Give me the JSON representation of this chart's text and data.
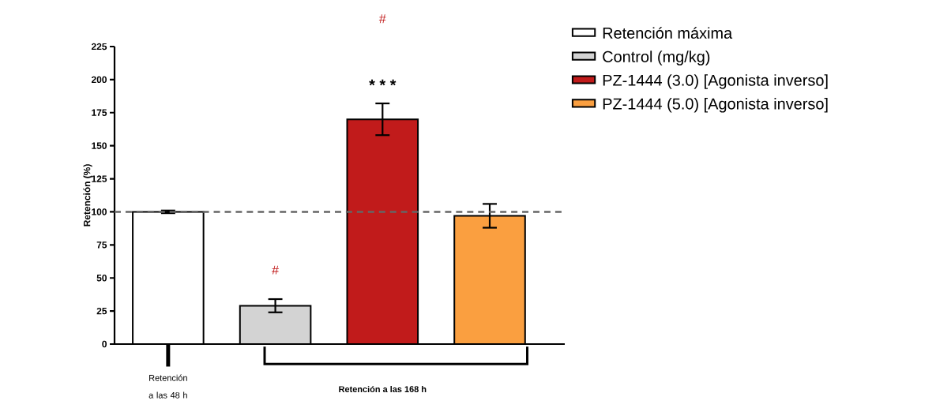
{
  "chart_data": {
    "type": "bar",
    "ylabel": "Retención (%)",
    "categories": [
      null,
      null,
      null,
      null
    ],
    "series": [
      {
        "name": "Retención máxima",
        "color": "#ffffff",
        "values": [
          100,
          null,
          null,
          null
        ],
        "errors": [
          1,
          null,
          null,
          null
        ]
      },
      {
        "name": "Control (mg/kg)",
        "color": "#d3d3d3",
        "values": [
          null,
          29,
          null,
          null
        ],
        "errors": [
          null,
          5,
          null,
          null
        ]
      },
      {
        "name": "PZ-1444 (3.0) [Agonista inverso]",
        "color": "#c11b1b",
        "values": [
          null,
          null,
          170,
          null
        ],
        "errors": [
          null,
          null,
          12,
          null
        ]
      },
      {
        "name": "PZ-1444 (5.0) [Agonista inverso]",
        "color": "#fa9f40",
        "values": [
          null,
          null,
          null,
          97
        ],
        "errors": [
          null,
          null,
          null,
          9
        ]
      }
    ],
    "ylim": [
      0,
      225
    ],
    "yticks": [
      0,
      25,
      50,
      75,
      100,
      125,
      150,
      175,
      200,
      225
    ],
    "ref_lines": [
      {
        "axis": "y",
        "value": 100,
        "color": "#666666",
        "line_style": "dashed"
      }
    ],
    "annotations": [
      "#",
      "* * *",
      "#",
      "Retención a las 48 h",
      "Retención a las 168 h"
    ],
    "legend": "right",
    "grid": false
  }
}
